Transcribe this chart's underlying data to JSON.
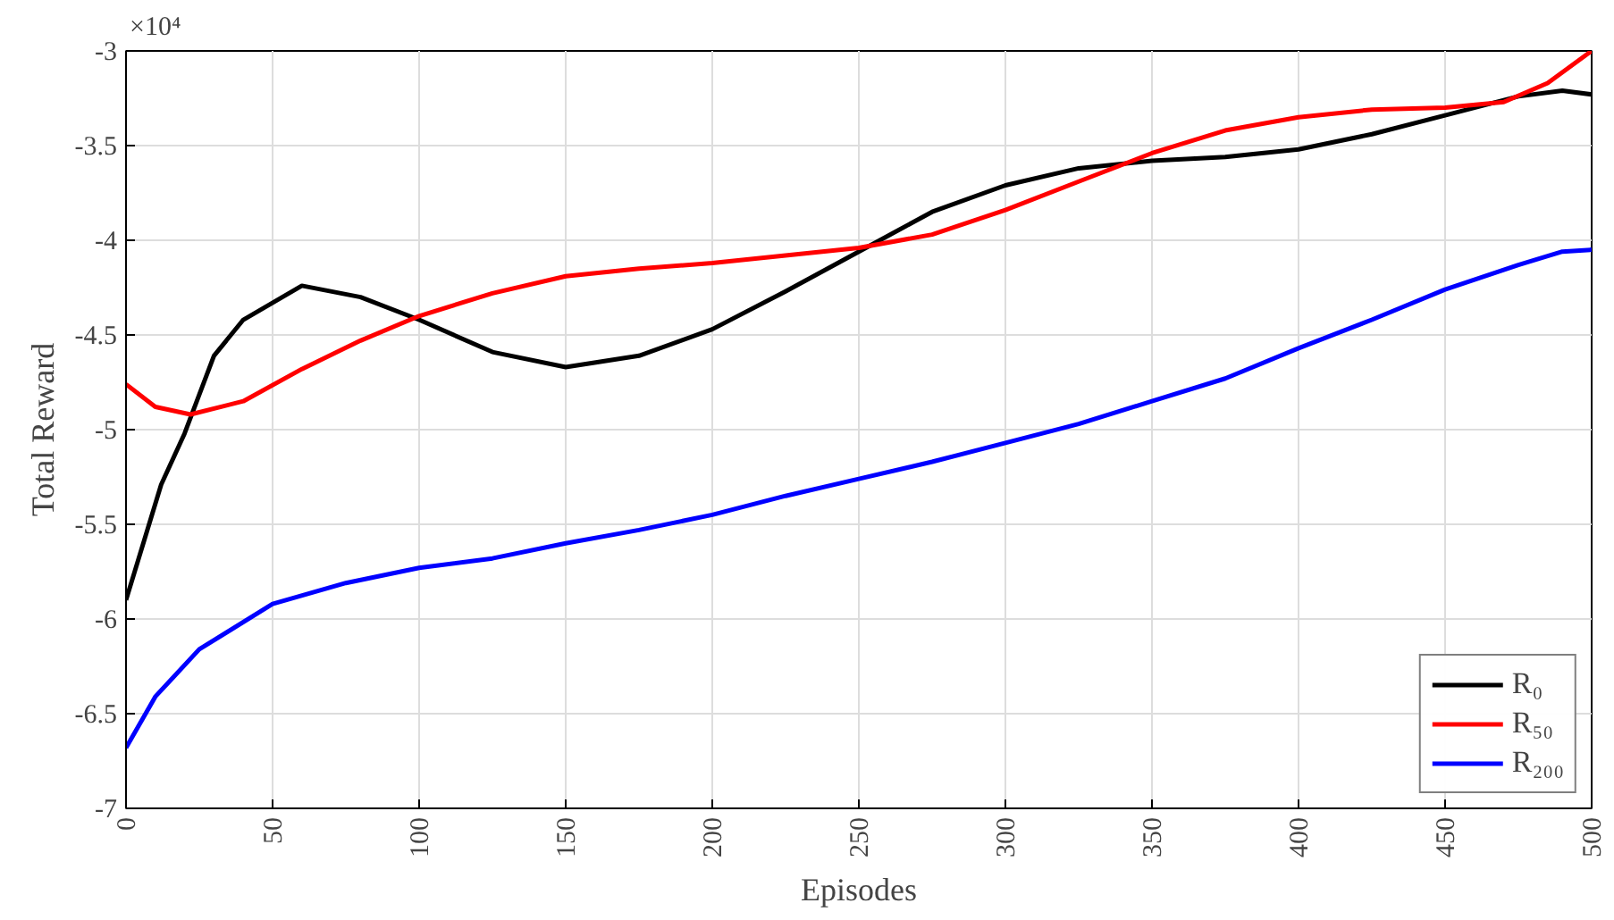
{
  "chart_data": {
    "type": "line",
    "xlabel": "Episodes",
    "ylabel": "Total Reward",
    "annotations": [
      "×10⁴"
    ],
    "xlim": [
      0,
      500
    ],
    "xticks": [
      0,
      50,
      100,
      150,
      200,
      250,
      300,
      350,
      400,
      450,
      500
    ],
    "ylim": [
      -7,
      -3
    ],
    "yticks": [
      -7,
      -6.5,
      -6,
      -5.5,
      -5,
      -4.5,
      -4,
      -3.5,
      -3
    ],
    "grid": true,
    "legend": "bottom right",
    "line_style": "solid",
    "marker": "none",
    "series": [
      {
        "name": "R₀",
        "color": "#000000",
        "x": [
          0,
          12,
          20,
          30,
          40,
          60,
          80,
          100,
          125,
          150,
          175,
          200,
          225,
          250,
          275,
          300,
          325,
          350,
          375,
          400,
          425,
          450,
          475,
          490,
          500
        ],
        "values": [
          -5.9,
          -5.29,
          -5.02,
          -4.61,
          -4.42,
          -4.24,
          -4.3,
          -4.42,
          -4.59,
          -4.67,
          -4.61,
          -4.47,
          -4.27,
          -4.06,
          -3.85,
          -3.71,
          -3.62,
          -3.58,
          -3.56,
          -3.52,
          -3.44,
          -3.34,
          -3.24,
          -3.21,
          -3.23
        ]
      },
      {
        "name": "R₅₀",
        "color": "#ff0000",
        "x": [
          0,
          10,
          22,
          40,
          60,
          80,
          100,
          125,
          150,
          175,
          200,
          225,
          250,
          275,
          300,
          325,
          350,
          375,
          400,
          425,
          450,
          470,
          485,
          500
        ],
        "values": [
          -4.76,
          -4.88,
          -4.92,
          -4.85,
          -4.68,
          -4.53,
          -4.4,
          -4.28,
          -4.19,
          -4.15,
          -4.12,
          -4.08,
          -4.04,
          -3.97,
          -3.84,
          -3.69,
          -3.54,
          -3.42,
          -3.35,
          -3.31,
          -3.3,
          -3.27,
          -3.17,
          -3.0
        ]
      },
      {
        "name": "R₂₀₀",
        "color": "#0000ff",
        "x": [
          0,
          10,
          25,
          50,
          75,
          100,
          125,
          150,
          175,
          200,
          225,
          250,
          275,
          300,
          325,
          350,
          375,
          400,
          425,
          450,
          475,
          490,
          500
        ],
        "values": [
          -6.68,
          -6.41,
          -6.16,
          -5.92,
          -5.81,
          -5.73,
          -5.68,
          -5.6,
          -5.53,
          -5.45,
          -5.35,
          -5.26,
          -5.17,
          -5.07,
          -4.97,
          -4.85,
          -4.73,
          -4.57,
          -4.42,
          -4.26,
          -4.13,
          -4.06,
          -4.05
        ]
      }
    ]
  }
}
